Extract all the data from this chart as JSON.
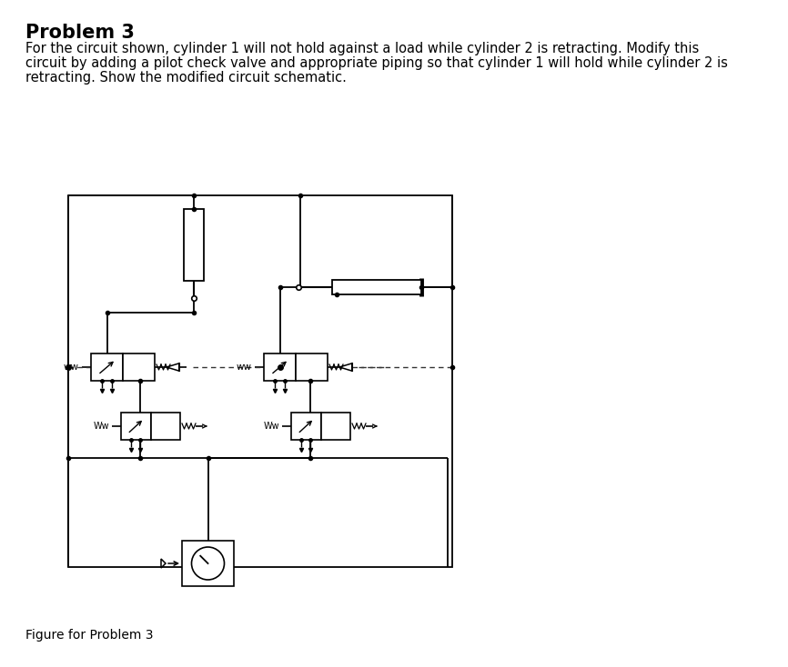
{
  "title": "Problem 3",
  "body_text_line1": "For the circuit shown, cylinder 1 will not hold against a load while cylinder 2 is retracting. Modify this",
  "body_text_line2": "circuit by adding a pilot check valve and appropriate piping so that cylinder 1 will hold while cylinder 2 is",
  "body_text_line3": "retracting. Show the modified circuit schematic.",
  "figure_caption": "Figure for Problem 3",
  "bg_color": "#ffffff",
  "lc": "#000000"
}
